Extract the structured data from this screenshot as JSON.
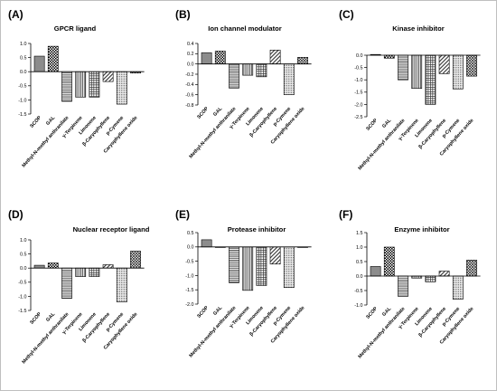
{
  "chart_data": [
    {
      "type": "bar",
      "letter": "(A)",
      "title": "GPCR ligand",
      "categories": [
        "SCOP",
        "GAL",
        "Methyl-N-methyl anthranilate",
        "γ-Terpinene",
        "Limonene",
        "β-Caryophyllene",
        "p-Cymene",
        "Caryophyllene oxide"
      ],
      "values": [
        0.55,
        0.9,
        -1.05,
        -0.9,
        -0.9,
        -0.35,
        -1.15,
        -0.05
      ],
      "ylim": [
        -1.5,
        1.0
      ],
      "yticks": [
        "1.0",
        "0.5",
        "0.0",
        "-0.5",
        "-1.0",
        "-1.5"
      ]
    },
    {
      "type": "bar",
      "letter": "(B)",
      "title": "Ion channel modulator",
      "categories": [
        "SCOP",
        "GAL",
        "Methyl-N-methyl anthranilate",
        "γ-Terpinene",
        "Limonene",
        "β-Caryophyllene",
        "p-Cymene",
        "Caryophyllene oxide"
      ],
      "values": [
        0.22,
        0.25,
        -0.47,
        -0.22,
        -0.25,
        0.27,
        -0.6,
        0.13
      ],
      "ylim": [
        -0.8,
        0.4
      ],
      "yticks": [
        "0.4",
        "0.2",
        "0.0",
        "-0.2",
        "-0.4",
        "-0.6",
        "-0.8"
      ]
    },
    {
      "type": "bar",
      "letter": "(C)",
      "title": "Kinase inhibitor",
      "categories": [
        "SCOP",
        "GAL",
        "Methyl-N-methyl anthranilate",
        "γ-Terpinene",
        "Limonene",
        "β-Caryophyllene",
        "p-Cymene",
        "Caryophyllene oxide"
      ],
      "values": [
        0.03,
        -0.12,
        -1.0,
        -1.35,
        -2.0,
        -0.75,
        -1.37,
        -0.85
      ],
      "ylim": [
        -2.5,
        0.0
      ],
      "yticks": [
        "0.0",
        "-0.5",
        "-1.0",
        "-1.5",
        "-2.0",
        "-2.5"
      ]
    },
    {
      "type": "bar",
      "letter": "(D)",
      "title": "Nuclear receptor ligand",
      "categories": [
        "SCOP",
        "GAL",
        "Methyl-N-methyl anthranilate",
        "γ-Terpinene",
        "Limonene",
        "β-Caryophyllene",
        "p-Cymene",
        "Caryophyllene oxide"
      ],
      "values": [
        0.1,
        0.18,
        -1.07,
        -0.3,
        -0.3,
        0.12,
        -1.2,
        0.6
      ],
      "ylim": [
        -1.5,
        1.0
      ],
      "yticks": [
        "1.0",
        "0.5",
        "0.0",
        "-0.5",
        "-1.0",
        "-1.5"
      ]
    },
    {
      "type": "bar",
      "letter": "(E)",
      "title": "Protease inhibitor",
      "categories": [
        "SCOP",
        "GAL",
        "Methyl-N-methyl anthranilate",
        "γ-Terpinene",
        "Limonene",
        "β-Caryophyllene",
        "p-Cymene",
        "Caryophyllene oxide"
      ],
      "values": [
        0.25,
        -0.02,
        -1.25,
        -1.52,
        -1.35,
        -0.6,
        -1.42,
        -0.02
      ],
      "ylim": [
        -2.0,
        0.5
      ],
      "yticks": [
        "0.5",
        "0.0",
        "-0.5",
        "-1.0",
        "-1.5",
        "-2.0"
      ]
    },
    {
      "type": "bar",
      "letter": "(F)",
      "title": "Enzyme inhibitor",
      "categories": [
        "SCOP",
        "GAL",
        "Methyl-N-methyl anthranilate",
        "γ-Terpinene",
        "Limonene",
        "β-Caryophyllene",
        "p-Cymene",
        "Caryophyllene oxide"
      ],
      "values": [
        0.33,
        1.0,
        -0.7,
        -0.07,
        -0.2,
        0.17,
        -0.8,
        0.55
      ],
      "ylim": [
        -1.0,
        1.5
      ],
      "yticks": [
        "1.5",
        "1.0",
        "0.5",
        "0.0",
        "-0.5",
        "-1.0"
      ]
    }
  ]
}
